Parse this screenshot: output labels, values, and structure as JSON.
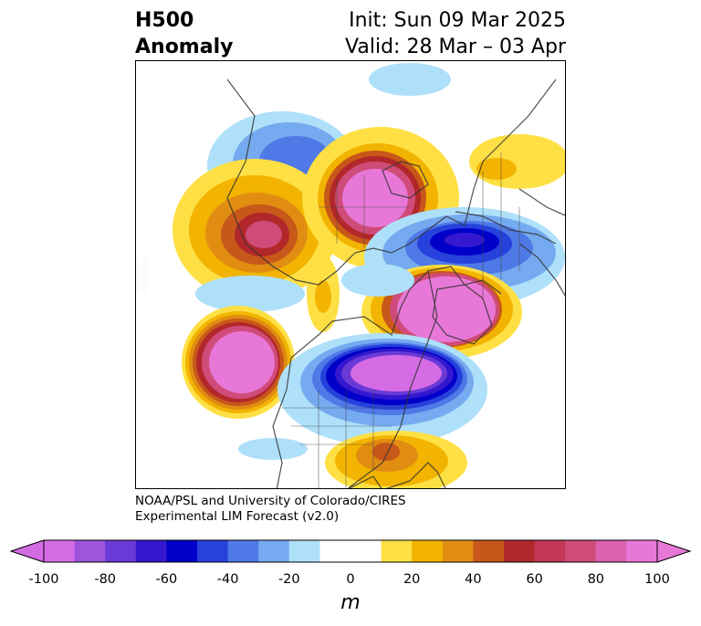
{
  "title": {
    "left_line1": "H500",
    "left_line2": "Anomaly",
    "right_line1": "Init: Sun 09 Mar 2025",
    "right_line2": "Valid: 28 Mar – 03 Apr"
  },
  "credit": {
    "line1": "NOAA/PSL and University of Colorado/CIRES",
    "line2": "Experimental LIM Forecast (v2.0)"
  },
  "colorbar": {
    "units": "m",
    "ticks": [
      "-100",
      "-80",
      "-60",
      "-40",
      "-20",
      "0",
      "20",
      "40",
      "60",
      "80",
      "100"
    ],
    "extend_low_color": "#d66be6",
    "extend_high_color": "#e878d8",
    "bins": [
      "#d66be6",
      "#9e55dc",
      "#6a3ad6",
      "#3418cf",
      "#0000c8",
      "#2641dc",
      "#4f79e6",
      "#76aaf0",
      "#aee0fa",
      "#ffffff",
      "#ffffff",
      "#ffe044",
      "#f2b400",
      "#e08d12",
      "#c8571a",
      "#b2272a",
      "#c23856",
      "#cf4c7a",
      "#dc62b0",
      "#e878d8"
    ]
  },
  "map": {
    "projection": "polar stereographic (Northern Hemisphere)",
    "features": [
      "coastlines",
      "country borders",
      "US states",
      "Canadian provinces"
    ]
  }
}
